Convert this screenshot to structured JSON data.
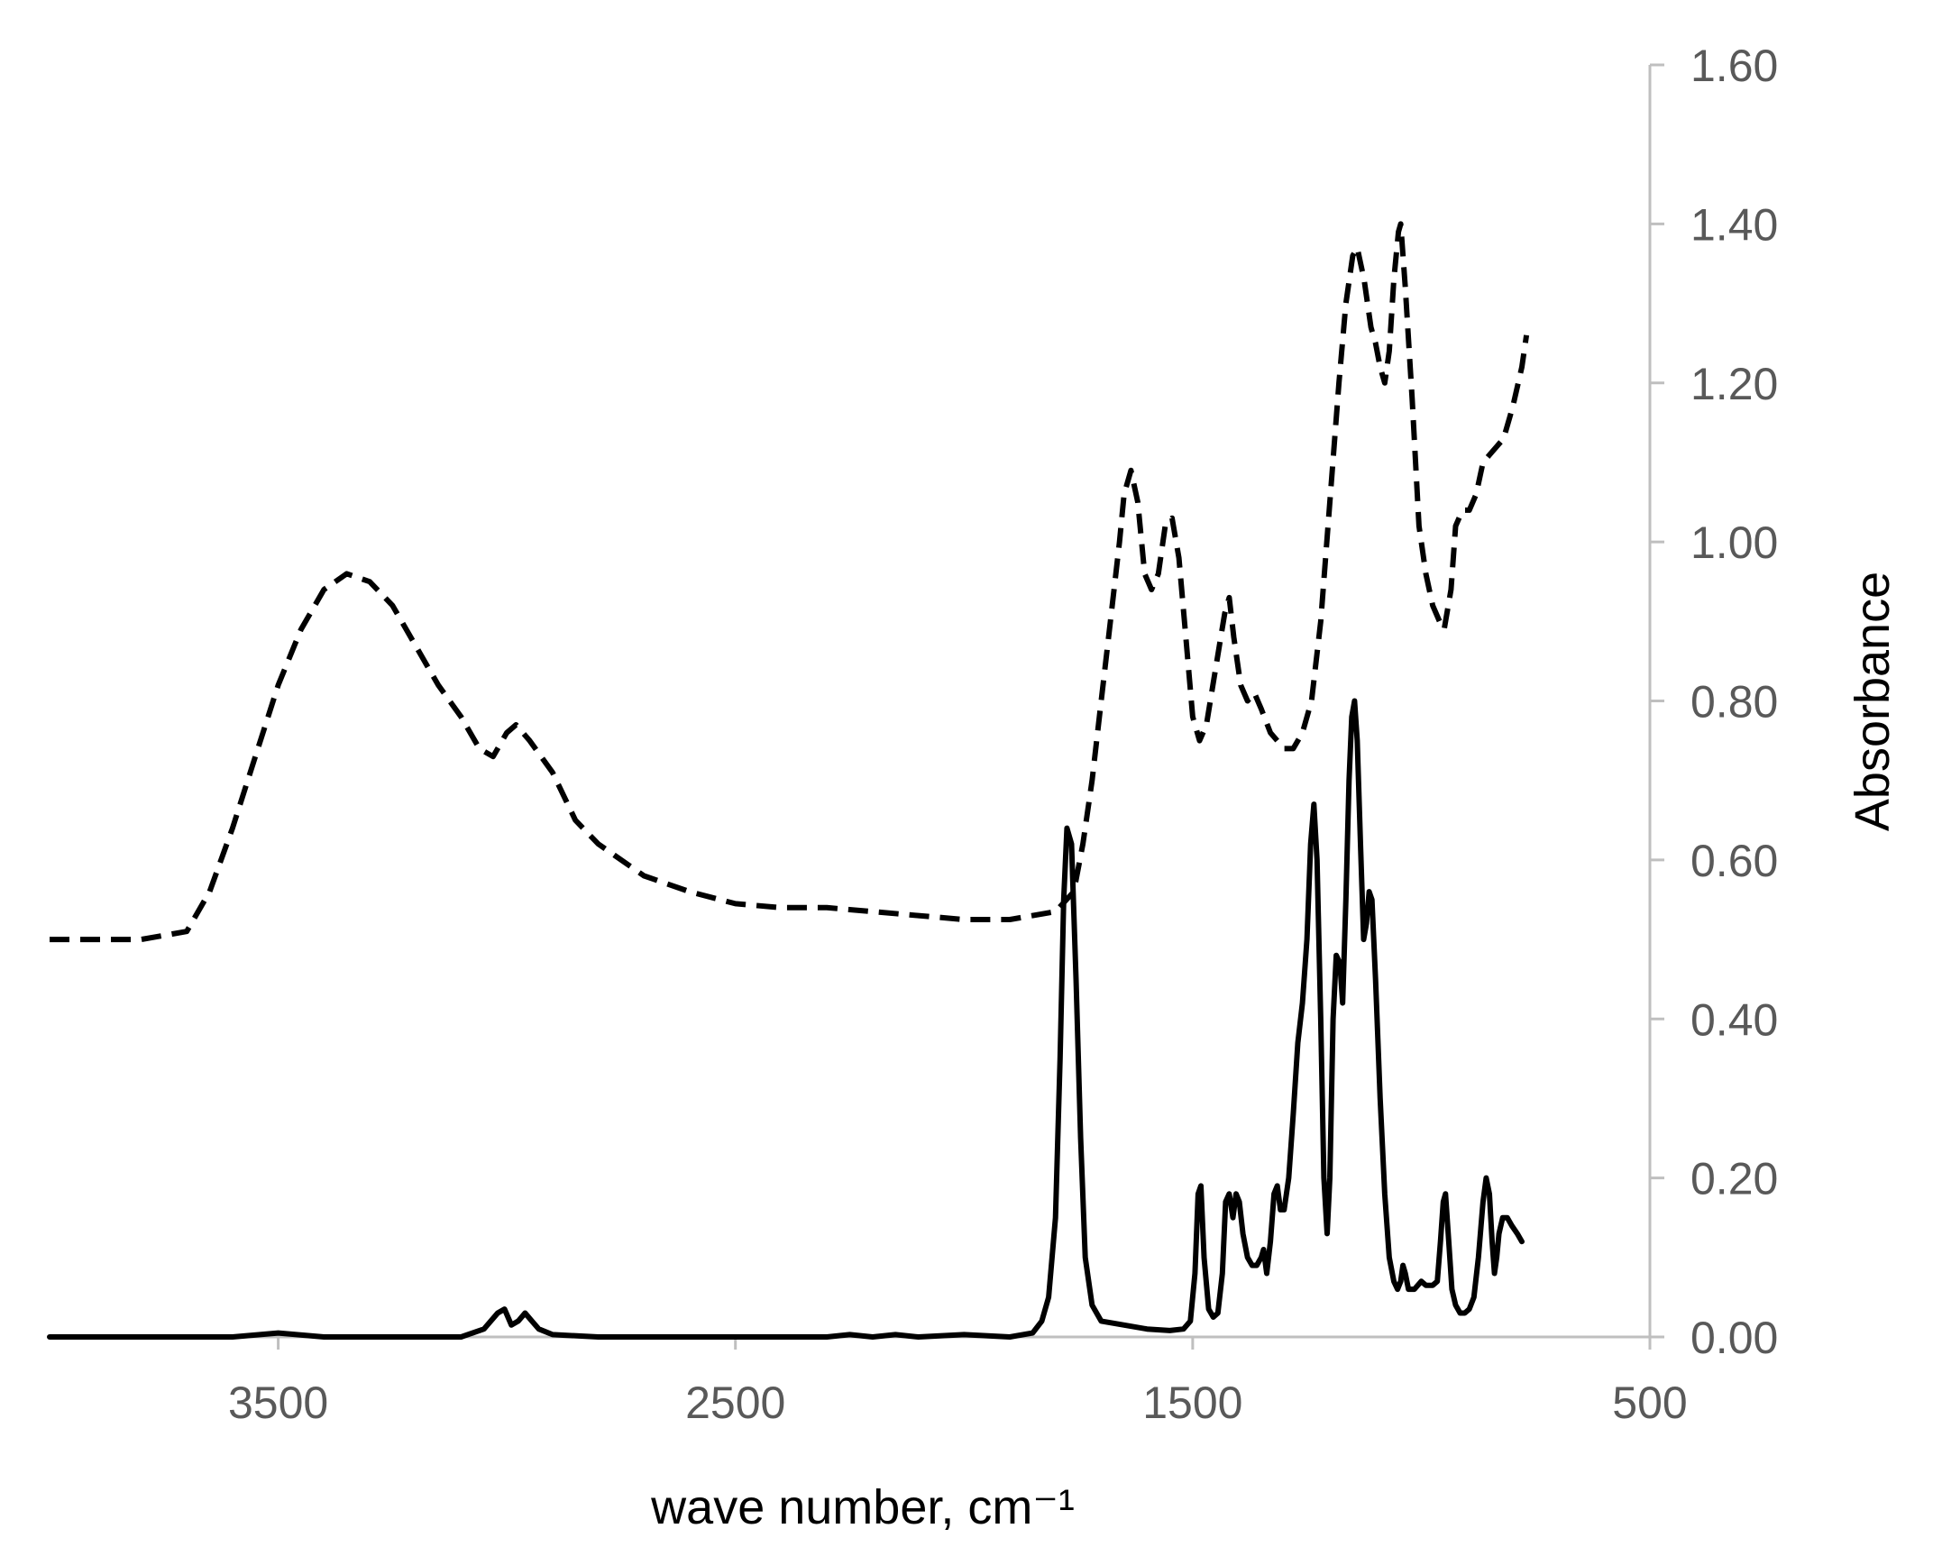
{
  "chart_data": {
    "type": "line",
    "xlabel": "wave number, cm⁻¹",
    "ylabel": "Absorbance",
    "xlim": [
      4000,
      500
    ],
    "x_reversed": true,
    "ylim": [
      0,
      1.6
    ],
    "x_ticks": [
      {
        "value": 3500,
        "label": "3500"
      },
      {
        "value": 2500,
        "label": "2500"
      },
      {
        "value": 1500,
        "label": "1500"
      },
      {
        "value": 500,
        "label": "500"
      }
    ],
    "y_ticks": [
      {
        "value": 0.0,
        "label": "0.00"
      },
      {
        "value": 0.2,
        "label": "0.20"
      },
      {
        "value": 0.4,
        "label": "0.40"
      },
      {
        "value": 0.6,
        "label": "0.60"
      },
      {
        "value": 0.8,
        "label": "0.80"
      },
      {
        "value": 1.0,
        "label": "1.00"
      },
      {
        "value": 1.2,
        "label": "1.20"
      },
      {
        "value": 1.4,
        "label": "1.40"
      },
      {
        "value": 1.6,
        "label": "1.60"
      }
    ],
    "y_axis_position": "right",
    "grid": false,
    "legend": "none",
    "series": [
      {
        "style": "dashed",
        "color": "#000000",
        "points": [
          [
            4000,
            0.5
          ],
          [
            3800,
            0.5
          ],
          [
            3700,
            0.51
          ],
          [
            3650,
            0.56
          ],
          [
            3600,
            0.64
          ],
          [
            3550,
            0.73
          ],
          [
            3500,
            0.82
          ],
          [
            3450,
            0.89
          ],
          [
            3400,
            0.94
          ],
          [
            3350,
            0.96
          ],
          [
            3300,
            0.95
          ],
          [
            3250,
            0.92
          ],
          [
            3200,
            0.87
          ],
          [
            3150,
            0.82
          ],
          [
            3100,
            0.78
          ],
          [
            3060,
            0.74
          ],
          [
            3030,
            0.73
          ],
          [
            3000,
            0.76
          ],
          [
            2980,
            0.77
          ],
          [
            2950,
            0.75
          ],
          [
            2900,
            0.71
          ],
          [
            2850,
            0.65
          ],
          [
            2800,
            0.62
          ],
          [
            2700,
            0.58
          ],
          [
            2600,
            0.56
          ],
          [
            2500,
            0.545
          ],
          [
            2400,
            0.54
          ],
          [
            2300,
            0.54
          ],
          [
            2200,
            0.535
          ],
          [
            2100,
            0.53
          ],
          [
            2000,
            0.525
          ],
          [
            1900,
            0.525
          ],
          [
            1800,
            0.535
          ],
          [
            1760,
            0.56
          ],
          [
            1740,
            0.62
          ],
          [
            1720,
            0.7
          ],
          [
            1700,
            0.8
          ],
          [
            1680,
            0.9
          ],
          [
            1660,
            1.0
          ],
          [
            1650,
            1.06
          ],
          [
            1635,
            1.09
          ],
          [
            1620,
            1.05
          ],
          [
            1605,
            0.96
          ],
          [
            1590,
            0.94
          ],
          [
            1575,
            0.96
          ],
          [
            1560,
            1.02
          ],
          [
            1545,
            1.03
          ],
          [
            1530,
            0.98
          ],
          [
            1515,
            0.88
          ],
          [
            1500,
            0.78
          ],
          [
            1485,
            0.75
          ],
          [
            1470,
            0.77
          ],
          [
            1450,
            0.84
          ],
          [
            1430,
            0.91
          ],
          [
            1420,
            0.93
          ],
          [
            1410,
            0.88
          ],
          [
            1395,
            0.82
          ],
          [
            1380,
            0.8
          ],
          [
            1365,
            0.81
          ],
          [
            1350,
            0.79
          ],
          [
            1330,
            0.76
          ],
          [
            1300,
            0.74
          ],
          [
            1280,
            0.74
          ],
          [
            1260,
            0.76
          ],
          [
            1240,
            0.8
          ],
          [
            1220,
            0.9
          ],
          [
            1200,
            1.05
          ],
          [
            1180,
            1.2
          ],
          [
            1165,
            1.3
          ],
          [
            1150,
            1.36
          ],
          [
            1140,
            1.37
          ],
          [
            1125,
            1.33
          ],
          [
            1110,
            1.27
          ],
          [
            1100,
            1.25
          ],
          [
            1090,
            1.22
          ],
          [
            1080,
            1.2
          ],
          [
            1070,
            1.24
          ],
          [
            1060,
            1.33
          ],
          [
            1050,
            1.39
          ],
          [
            1045,
            1.4
          ],
          [
            1035,
            1.32
          ],
          [
            1020,
            1.18
          ],
          [
            1005,
            1.02
          ],
          [
            990,
            0.96
          ],
          [
            975,
            0.92
          ],
          [
            960,
            0.9
          ],
          [
            950,
            0.89
          ],
          [
            935,
            0.94
          ],
          [
            925,
            1.02
          ],
          [
            910,
            1.04
          ],
          [
            895,
            1.04
          ],
          [
            880,
            1.06
          ],
          [
            865,
            1.1
          ],
          [
            850,
            1.11
          ],
          [
            835,
            1.12
          ],
          [
            820,
            1.13
          ],
          [
            800,
            1.17
          ],
          [
            780,
            1.22
          ],
          [
            770,
            1.26
          ]
        ]
      },
      {
        "style": "solid",
        "color": "#000000",
        "points": [
          [
            4000,
            0.0
          ],
          [
            3600,
            0.0
          ],
          [
            3500,
            0.005
          ],
          [
            3400,
            0.0
          ],
          [
            3100,
            0.0
          ],
          [
            3050,
            0.01
          ],
          [
            3020,
            0.03
          ],
          [
            3005,
            0.035
          ],
          [
            2990,
            0.015
          ],
          [
            2975,
            0.02
          ],
          [
            2960,
            0.03
          ],
          [
            2945,
            0.02
          ],
          [
            2930,
            0.01
          ],
          [
            2900,
            0.003
          ],
          [
            2800,
            0.0
          ],
          [
            2300,
            0.0
          ],
          [
            2250,
            0.003
          ],
          [
            2200,
            0.0
          ],
          [
            2150,
            0.003
          ],
          [
            2100,
            0.0
          ],
          [
            2000,
            0.003
          ],
          [
            1900,
            0.0
          ],
          [
            1850,
            0.005
          ],
          [
            1830,
            0.02
          ],
          [
            1815,
            0.05
          ],
          [
            1800,
            0.15
          ],
          [
            1790,
            0.35
          ],
          [
            1782,
            0.55
          ],
          [
            1775,
            0.64
          ],
          [
            1765,
            0.62
          ],
          [
            1755,
            0.45
          ],
          [
            1745,
            0.25
          ],
          [
            1735,
            0.1
          ],
          [
            1720,
            0.04
          ],
          [
            1700,
            0.02
          ],
          [
            1650,
            0.015
          ],
          [
            1600,
            0.01
          ],
          [
            1550,
            0.008
          ],
          [
            1520,
            0.01
          ],
          [
            1505,
            0.02
          ],
          [
            1495,
            0.08
          ],
          [
            1488,
            0.18
          ],
          [
            1482,
            0.19
          ],
          [
            1475,
            0.1
          ],
          [
            1465,
            0.035
          ],
          [
            1455,
            0.025
          ],
          [
            1445,
            0.03
          ],
          [
            1435,
            0.08
          ],
          [
            1428,
            0.17
          ],
          [
            1420,
            0.18
          ],
          [
            1412,
            0.15
          ],
          [
            1405,
            0.18
          ],
          [
            1398,
            0.17
          ],
          [
            1390,
            0.13
          ],
          [
            1380,
            0.1
          ],
          [
            1370,
            0.09
          ],
          [
            1360,
            0.09
          ],
          [
            1350,
            0.1
          ],
          [
            1345,
            0.11
          ],
          [
            1338,
            0.08
          ],
          [
            1330,
            0.12
          ],
          [
            1322,
            0.18
          ],
          [
            1315,
            0.19
          ],
          [
            1308,
            0.16
          ],
          [
            1300,
            0.16
          ],
          [
            1290,
            0.2
          ],
          [
            1280,
            0.28
          ],
          [
            1270,
            0.37
          ],
          [
            1260,
            0.42
          ],
          [
            1250,
            0.5
          ],
          [
            1242,
            0.62
          ],
          [
            1235,
            0.67
          ],
          [
            1228,
            0.6
          ],
          [
            1220,
            0.4
          ],
          [
            1213,
            0.2
          ],
          [
            1206,
            0.13
          ],
          [
            1200,
            0.2
          ],
          [
            1193,
            0.4
          ],
          [
            1186,
            0.48
          ],
          [
            1178,
            0.47
          ],
          [
            1172,
            0.42
          ],
          [
            1165,
            0.55
          ],
          [
            1158,
            0.7
          ],
          [
            1152,
            0.78
          ],
          [
            1146,
            0.8
          ],
          [
            1140,
            0.75
          ],
          [
            1133,
            0.62
          ],
          [
            1126,
            0.5
          ],
          [
            1120,
            0.52
          ],
          [
            1114,
            0.56
          ],
          [
            1108,
            0.55
          ],
          [
            1100,
            0.45
          ],
          [
            1090,
            0.3
          ],
          [
            1080,
            0.18
          ],
          [
            1070,
            0.1
          ],
          [
            1060,
            0.07
          ],
          [
            1052,
            0.06
          ],
          [
            1045,
            0.07
          ],
          [
            1040,
            0.09
          ],
          [
            1035,
            0.08
          ],
          [
            1028,
            0.06
          ],
          [
            1015,
            0.06
          ],
          [
            1000,
            0.07
          ],
          [
            990,
            0.065
          ],
          [
            975,
            0.065
          ],
          [
            965,
            0.07
          ],
          [
            958,
            0.12
          ],
          [
            952,
            0.17
          ],
          [
            947,
            0.18
          ],
          [
            940,
            0.12
          ],
          [
            933,
            0.06
          ],
          [
            925,
            0.04
          ],
          [
            915,
            0.03
          ],
          [
            905,
            0.03
          ],
          [
            895,
            0.035
          ],
          [
            885,
            0.05
          ],
          [
            875,
            0.1
          ],
          [
            865,
            0.17
          ],
          [
            858,
            0.2
          ],
          [
            851,
            0.18
          ],
          [
            845,
            0.12
          ],
          [
            840,
            0.08
          ],
          [
            835,
            0.1
          ],
          [
            830,
            0.13
          ],
          [
            822,
            0.15
          ],
          [
            812,
            0.15
          ],
          [
            802,
            0.14
          ],
          [
            790,
            0.13
          ],
          [
            780,
            0.12
          ]
        ]
      }
    ]
  }
}
